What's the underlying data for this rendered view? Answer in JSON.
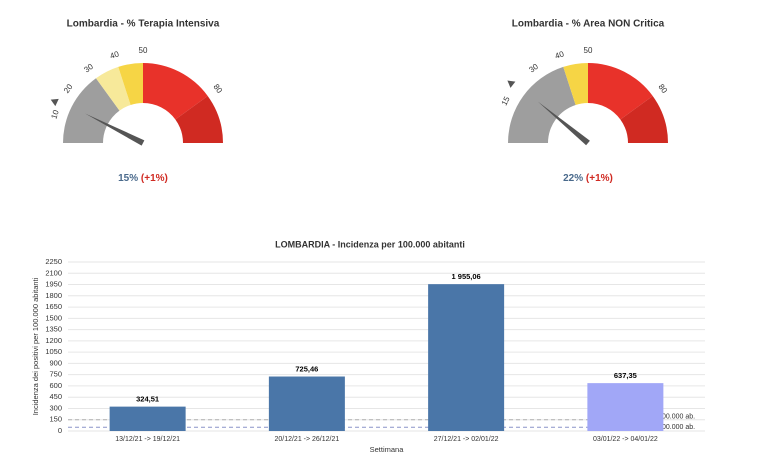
{
  "chart_data": [
    {
      "type": "gauge",
      "title": "Lombardia - % Terapia Intensiva",
      "value": 15,
      "value_label": "15%",
      "change_label": "(+1%)",
      "marker": 14,
      "min": 0,
      "max": 100,
      "ticks": [
        10,
        20,
        30,
        40,
        50,
        80
      ],
      "bands": [
        {
          "from": 0,
          "to": 30,
          "color": "#9e9e9e"
        },
        {
          "from": 30,
          "to": 40,
          "color": "#f7e99a"
        },
        {
          "from": 40,
          "to": 50,
          "color": "#f6d545"
        },
        {
          "from": 50,
          "to": 80,
          "color": "#e8322a"
        },
        {
          "from": 80,
          "to": 100,
          "color": "#d02a22"
        }
      ]
    },
    {
      "type": "gauge",
      "title": "Lombardia - % Area NON Critica",
      "value": 22,
      "value_label": "22%",
      "change_label": "(+1%)",
      "marker": 21,
      "min": 0,
      "max": 100,
      "ticks": [
        15,
        30,
        40,
        50,
        80
      ],
      "bands": [
        {
          "from": 0,
          "to": 40,
          "color": "#9e9e9e"
        },
        {
          "from": 40,
          "to": 50,
          "color": "#f6d545"
        },
        {
          "from": 50,
          "to": 80,
          "color": "#e8322a"
        },
        {
          "from": 80,
          "to": 100,
          "color": "#d02a22"
        }
      ]
    },
    {
      "type": "bar",
      "title": "LOMBARDIA - Incidenza per 100.000 abitanti",
      "x_label": "Settimana",
      "y_label": "Incidenza dei positivi per 100.000 abitanti",
      "categories": [
        "13/12/21 -> 19/12/21",
        "20/12/21 -> 26/12/21",
        "27/12/21 -> 02/01/22",
        "03/01/22 -> 04/01/22"
      ],
      "values": [
        324.51,
        725.46,
        1955.06,
        637.35
      ],
      "value_labels": [
        "324,51",
        "725,46",
        "1 955,06",
        "637,35"
      ],
      "colors": [
        "#4a76a8",
        "#4a76a8",
        "#4a76a8",
        "#a1a7f7"
      ],
      "ylim": [
        0,
        2250
      ],
      "yticks": [
        0,
        150,
        300,
        450,
        600,
        750,
        900,
        1050,
        1200,
        1350,
        1500,
        1650,
        1800,
        1950,
        2100,
        2250
      ],
      "grid": true,
      "reference_lines": [
        {
          "value": 150,
          "label": "00.000 ab.",
          "color": "#b0b0b0"
        },
        {
          "value": 50,
          "label": "00.000 ab.",
          "color": "#8a94c8"
        }
      ]
    }
  ]
}
